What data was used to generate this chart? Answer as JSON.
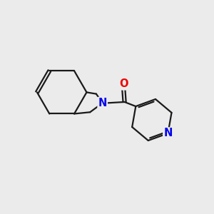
{
  "background_color": "#ebebeb",
  "bond_color": "#1a1a1a",
  "nitrogen_color": "#0000ee",
  "oxygen_color": "#ee0000",
  "bond_width": 1.6,
  "font_size_atom": 10.5,
  "xlim": [
    0,
    10
  ],
  "ylim": [
    0,
    10
  ]
}
